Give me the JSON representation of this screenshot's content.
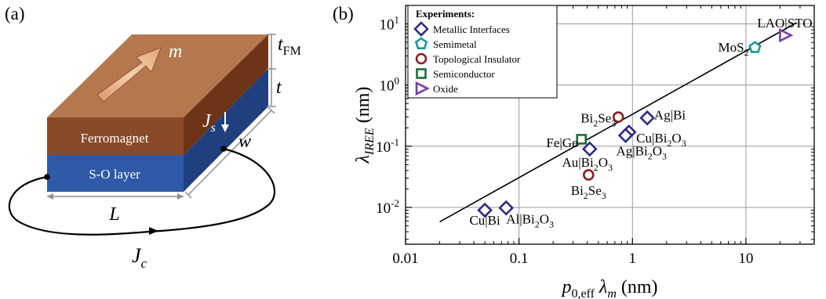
{
  "panel_a": {
    "label": "(a)",
    "ferromagnet_label": "Ferromagnet",
    "so_layer_label": "S-O layer",
    "m_label": "m",
    "t_fm_label": {
      "base": "t",
      "sub": "FM"
    },
    "t_label": "t",
    "js_label": {
      "base": "J",
      "sub": "s"
    },
    "w_label": "w",
    "l_label": "L",
    "jc_label": {
      "base": "J",
      "sub": "c"
    },
    "colors": {
      "fm_top": "#b5784e",
      "fm_front": "#8a4a28",
      "fm_side": "#6e3418",
      "so_front": "#2e5aa8",
      "so_side": "#1f3f7e",
      "arrow": "#e8b088"
    }
  },
  "panel_b": {
    "label": "(b)"
  },
  "chart_data": {
    "type": "scatter",
    "xscale": "log",
    "yscale": "log",
    "xlim": [
      0.01,
      40
    ],
    "ylim": [
      0.0025,
      20
    ],
    "grid": true,
    "xlabel": {
      "p": "p",
      "sub": "0,eff",
      "lam": "λ",
      "lamsub": "m",
      "unit": " (nm)"
    },
    "ylabel": {
      "lam": "λ",
      "sub": "IREE",
      "unit": " (nm)"
    },
    "xticks": [
      {
        "v": 0.01,
        "label": "0.01"
      },
      {
        "v": 0.1,
        "label": "0.1"
      },
      {
        "v": 1,
        "label": "1"
      },
      {
        "v": 10,
        "label": "10"
      }
    ],
    "yticks": [
      {
        "v": 0.01,
        "base": "10",
        "exp": "-2"
      },
      {
        "v": 0.1,
        "base": "10",
        "exp": "-1"
      },
      {
        "v": 1,
        "base": "10",
        "exp": "0"
      },
      {
        "v": 10,
        "base": "10",
        "exp": "1"
      }
    ],
    "legend": {
      "title": "Experiments:",
      "position": "top-left",
      "entries": [
        {
          "label": "Metallic Interfaces",
          "marker": "diamond",
          "color": "#2b2b8c"
        },
        {
          "label": "Semimetal",
          "marker": "pentagon",
          "color": "#1a9a92"
        },
        {
          "label": "Topological Insulator",
          "marker": "circle",
          "color": "#8c1f1f"
        },
        {
          "label": "Semiconductor",
          "marker": "square",
          "color": "#1d6b3a"
        },
        {
          "label": "Oxide",
          "marker": "triangle",
          "color": "#7a3aa8"
        }
      ]
    },
    "fit_line": {
      "x": [
        0.02,
        28
      ],
      "y": [
        0.0058,
        10.5
      ]
    },
    "points": [
      {
        "x": 0.05,
        "y": 0.009,
        "marker": "diamond",
        "color": "#2b2b8c",
        "label": [
          {
            "t": "Cu|Bi"
          }
        ],
        "lx": 0.05,
        "ly": 0.0062,
        "anchor": "middle"
      },
      {
        "x": 0.077,
        "y": 0.0098,
        "marker": "diamond",
        "color": "#2b2b8c",
        "label": [
          {
            "t": "Al|Bi"
          },
          {
            "t": "2",
            "s": 1
          },
          {
            "t": "O"
          },
          {
            "t": "3",
            "s": 1
          }
        ],
        "lx": 0.125,
        "ly": 0.0065,
        "anchor": "middle"
      },
      {
        "x": 0.42,
        "y": 0.09,
        "marker": "diamond",
        "color": "#2b2b8c",
        "label": [
          {
            "t": "Au|Bi"
          },
          {
            "t": "2",
            "s": 1
          },
          {
            "t": "O"
          },
          {
            "t": "3",
            "s": 1
          }
        ],
        "lx": 0.4,
        "ly": 0.055,
        "anchor": "middle"
      },
      {
        "x": 0.93,
        "y": 0.17,
        "marker": "diamond",
        "color": "#2b2b8c",
        "label": [
          {
            "t": "Cu|Bi"
          },
          {
            "t": "2",
            "s": 1
          },
          {
            "t": "O"
          },
          {
            "t": "3",
            "s": 1
          }
        ],
        "lx": 1.08,
        "ly": 0.138,
        "anchor": "start"
      },
      {
        "x": 0.87,
        "y": 0.15,
        "marker": "diamond",
        "color": "#2b2b8c",
        "label": [
          {
            "t": "Ag|Bi"
          },
          {
            "t": "2",
            "s": 1
          },
          {
            "t": "O"
          },
          {
            "t": "3",
            "s": 1
          }
        ],
        "lx": 1.2,
        "ly": 0.084,
        "anchor": "middle"
      },
      {
        "x": 1.35,
        "y": 0.29,
        "marker": "diamond",
        "color": "#2b2b8c",
        "label": [
          {
            "t": "Ag|Bi"
          }
        ],
        "lx": 1.55,
        "ly": 0.33,
        "anchor": "start"
      },
      {
        "x": 0.75,
        "y": 0.3,
        "marker": "circle",
        "color": "#8c1f1f",
        "label": [
          {
            "t": "Bi"
          },
          {
            "t": "2",
            "s": 1
          },
          {
            "t": "Se"
          },
          {
            "t": "3",
            "s": 1
          }
        ],
        "lx": 0.5,
        "ly": 0.29,
        "anchor": "middle"
      },
      {
        "x": 0.41,
        "y": 0.034,
        "marker": "circle",
        "color": "#8c1f1f",
        "label": [
          {
            "t": "Bi"
          },
          {
            "t": "2",
            "s": 1
          },
          {
            "t": "Se"
          },
          {
            "t": "3",
            "s": 1
          }
        ],
        "lx": 0.41,
        "ly": 0.019,
        "anchor": "middle"
      },
      {
        "x": 0.355,
        "y": 0.13,
        "marker": "square",
        "color": "#1d6b3a",
        "label": [
          {
            "t": "Fe|Ge"
          }
        ],
        "lx": 0.33,
        "ly": 0.115,
        "anchor": "end"
      },
      {
        "x": 12,
        "y": 4.1,
        "marker": "pentagon",
        "color": "#1a9a92",
        "label": [
          {
            "t": "MoS"
          },
          {
            "t": "2",
            "s": 1
          }
        ],
        "lx": 10.6,
        "ly": 4.2,
        "anchor": "end"
      },
      {
        "x": 22,
        "y": 6.5,
        "marker": "triangle",
        "color": "#7a3aa8",
        "label": [
          {
            "t": "LAO|STO"
          }
        ],
        "lx": 22,
        "ly": 10.5,
        "anchor": "middle"
      }
    ]
  }
}
